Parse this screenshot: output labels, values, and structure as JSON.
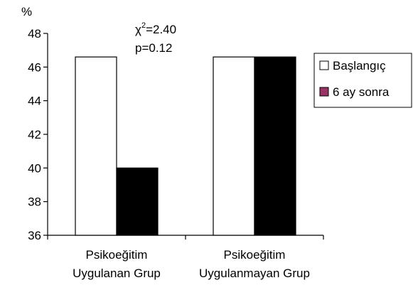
{
  "chart_data": {
    "type": "bar",
    "ylabel": "%",
    "ylim": [
      36,
      48
    ],
    "yticks": [
      36,
      38,
      40,
      42,
      44,
      46,
      48
    ],
    "grid": false,
    "legend_position": "right",
    "categories": [
      [
        "Psikoeğitim",
        "Uygulanan Grup"
      ],
      [
        "Psikoeğitim",
        "Uygulanmayan Grup"
      ]
    ],
    "series": [
      {
        "name": "Başlangıç",
        "values": [
          46.6,
          46.6
        ],
        "fill": "#ffffff",
        "legend_swatch": "#ffffff"
      },
      {
        "name": "6 ay sonra",
        "values": [
          40.0,
          46.6
        ],
        "fill": "#000000",
        "legend_swatch": "#993366"
      }
    ],
    "annotation": {
      "chi_symbol": "χ",
      "chi_exponent": "2",
      "chi_value": "=2.40",
      "p_text": "p=0.12"
    }
  }
}
